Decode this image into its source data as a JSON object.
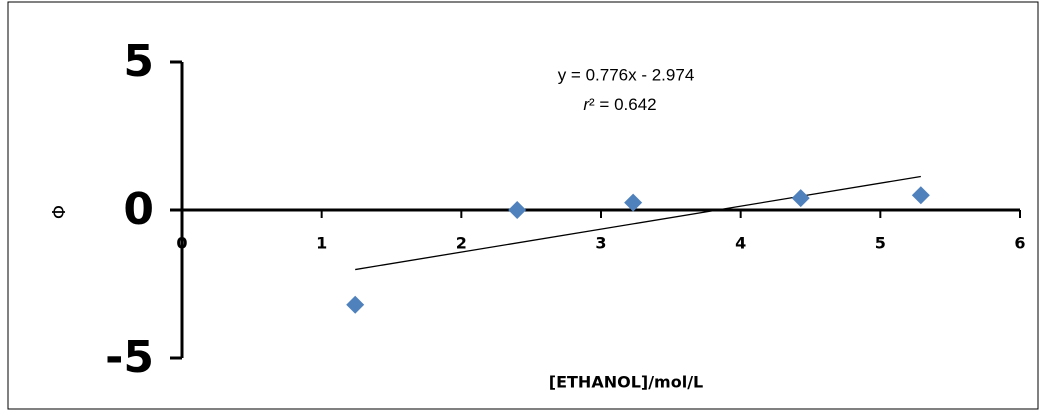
{
  "chart_data": {
    "type": "scatter",
    "x_label": "[ETHANOL]/mol/L",
    "y_label": "Φ",
    "series": [
      {
        "name": null,
        "color": "#4f81bd",
        "x": [
          1.24,
          2.4,
          3.23,
          4.43,
          5.29
        ],
        "values": [
          -3.2,
          0.0,
          0.25,
          0.4,
          0.5
        ]
      }
    ],
    "trendline": {
      "equation": "y = 0.776x - 2.974",
      "r_symbol": "r",
      "r_rest": "² = 0.642",
      "slope": 0.776,
      "intercept": -2.974,
      "color": "#000000"
    },
    "xlim": [
      0,
      6
    ],
    "xticks": [
      0,
      1,
      2,
      3,
      4,
      5,
      6
    ],
    "ylim": [
      -5,
      5
    ],
    "yticks": [
      -5,
      0,
      5
    ]
  }
}
